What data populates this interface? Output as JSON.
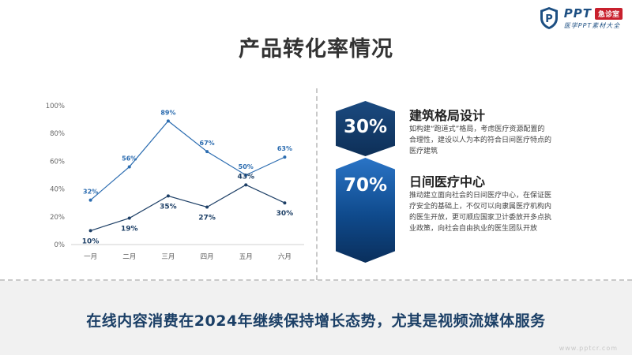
{
  "page": {
    "title": "产品转化率情况",
    "footer": "在线内容消费在2024年继续保持增长态势，尤其是视频流媒体服务",
    "watermark": "www.pptcr.com"
  },
  "logo": {
    "ppt": "PPT",
    "badge": "急诊室",
    "subtitle": "医学PPT素材大全"
  },
  "blocks": [
    {
      "percent": "30%",
      "title": "建筑格局设计",
      "lines": [
        "如构建“跑道式”格局，考虑医疗资源配置的",
        "合理性，建设以人为本的符合日间医疗特点的",
        "医疗建筑"
      ]
    },
    {
      "percent": "70%",
      "title": "日间医疗中心",
      "lines": [
        "推动建立面向社会的日间医疗中心，在保证医",
        "疗安全的基础上，不仅可以向隶属医疗机构内",
        "的医生开放，更可顺应国家卫计委放开多点执",
        "业政策，向社会自由执业的医生团队开放"
      ]
    }
  ],
  "colors": {
    "series1": "#2b6cb0",
    "series2": "#1d3f66",
    "accent": "#1b4a80"
  },
  "chart_data": {
    "type": "line",
    "x": [
      "一月",
      "二月",
      "三月",
      "四月",
      "五月",
      "六月"
    ],
    "y_ticks": [
      "0%",
      "20%",
      "40%",
      "60%",
      "80%",
      "100%"
    ],
    "ylim": [
      0,
      100
    ],
    "series": [
      {
        "values": [
          32,
          56,
          89,
          67,
          50,
          63
        ],
        "labels": [
          "32%",
          "56%",
          "89%",
          "67%",
          "50%",
          "63%"
        ],
        "color": "#2b6cb0"
      },
      {
        "values": [
          10,
          19,
          35,
          27,
          43,
          30
        ],
        "labels": [
          "10%",
          "19%",
          "35%",
          "27%",
          "43%",
          "30%"
        ],
        "color": "#1d3f66"
      }
    ],
    "grid": false,
    "legend": "none"
  }
}
